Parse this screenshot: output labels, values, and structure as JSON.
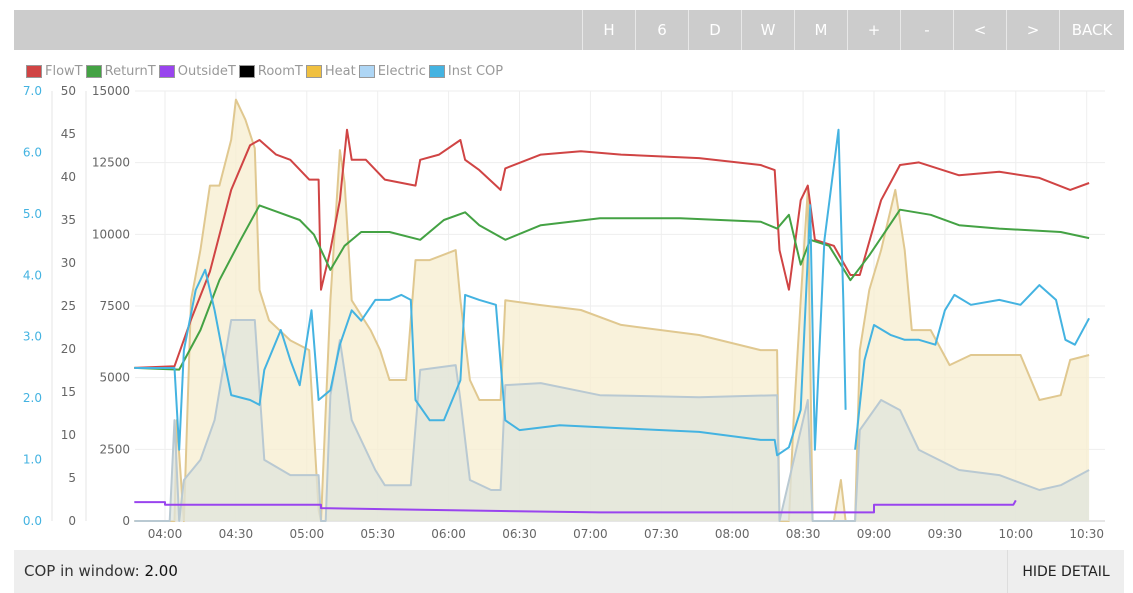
{
  "toolbar": {
    "buttons": [
      "H",
      "6",
      "D",
      "W",
      "M",
      "+",
      "-",
      "<",
      ">"
    ],
    "back": "BACK"
  },
  "legend": [
    {
      "label": "FlowT",
      "color": "#d04444"
    },
    {
      "label": "ReturnT",
      "color": "#44a244"
    },
    {
      "label": "OutsideT",
      "color": "#9944ee"
    },
    {
      "label": "RoomT",
      "color": "#000000"
    },
    {
      "label": "Heat",
      "color": "#f0c040"
    },
    {
      "label": "Electric",
      "color": "#aed6f5"
    },
    {
      "label": "Inst COP",
      "color": "#44b3e1"
    }
  ],
  "footer": {
    "cop_label": "COP in window:",
    "cop_value": "2.00",
    "hide_detail": "HIDE DETAIL"
  },
  "chart_data": {
    "type": "line",
    "x_unit": "minutes since midnight",
    "x_ticks": [
      "04:00",
      "04:30",
      "05:00",
      "05:30",
      "06:00",
      "06:30",
      "07:00",
      "07:30",
      "08:00",
      "08:30",
      "09:00",
      "09:30",
      "10:00",
      "10:30"
    ],
    "axes": {
      "cop": {
        "range": [
          0,
          7
        ],
        "ticks": [
          "0.0",
          "1.0",
          "2.0",
          "3.0",
          "4.0",
          "5.0",
          "6.0",
          "7.0"
        ],
        "color": "#44b3e1"
      },
      "temp": {
        "range": [
          0,
          50
        ],
        "ticks": [
          "0",
          "5",
          "10",
          "15",
          "20",
          "25",
          "30",
          "35",
          "40",
          "45",
          "50"
        ]
      },
      "power": {
        "range": [
          0,
          15000
        ],
        "ticks": [
          "0",
          "2500",
          "5000",
          "7500",
          "10000",
          "12500",
          "15000"
        ]
      }
    },
    "series": [
      {
        "name": "Heat",
        "axis": "power",
        "fill": "#f7edcf",
        "line": "#e0c890",
        "points": [
          [
            227,
            0
          ],
          [
            244,
            0
          ],
          [
            245,
            3520
          ],
          [
            248,
            0
          ],
          [
            251,
            7700
          ],
          [
            255,
            9450
          ],
          [
            259,
            11700
          ],
          [
            263,
            11700
          ],
          [
            268,
            13300
          ],
          [
            270,
            14700
          ],
          [
            274,
            14000
          ],
          [
            278,
            13000
          ],
          [
            280,
            8060
          ],
          [
            284,
            7000
          ],
          [
            293,
            6300
          ],
          [
            301,
            5960
          ],
          [
            305,
            380
          ],
          [
            306,
            0
          ],
          [
            310,
            7700
          ],
          [
            314,
            12940
          ],
          [
            316,
            11800
          ],
          [
            319,
            7700
          ],
          [
            327,
            6660
          ],
          [
            331,
            5960
          ],
          [
            335,
            4920
          ],
          [
            342,
            4920
          ],
          [
            346,
            9100
          ],
          [
            352,
            9100
          ],
          [
            363,
            9450
          ],
          [
            365,
            7700
          ],
          [
            369,
            4920
          ],
          [
            373,
            4220
          ],
          [
            382,
            4220
          ],
          [
            384,
            7700
          ],
          [
            399,
            7530
          ],
          [
            416,
            7360
          ],
          [
            433,
            6840
          ],
          [
            466,
            6490
          ],
          [
            492,
            5960
          ],
          [
            499,
            5960
          ],
          [
            500,
            0
          ],
          [
            504,
            0
          ],
          [
            506,
            3520
          ],
          [
            509,
            7700
          ],
          [
            512,
            11550
          ],
          [
            514,
            0
          ],
          [
            523,
            0
          ],
          [
            526,
            1430
          ],
          [
            528,
            0
          ],
          [
            532,
            0
          ],
          [
            534,
            5960
          ],
          [
            538,
            8060
          ],
          [
            543,
            9450
          ],
          [
            549,
            11550
          ],
          [
            553,
            9450
          ],
          [
            556,
            6660
          ],
          [
            564,
            6660
          ],
          [
            572,
            5440
          ],
          [
            581,
            5790
          ],
          [
            593,
            5790
          ],
          [
            602,
            5790
          ],
          [
            610,
            4220
          ],
          [
            619,
            4390
          ],
          [
            623,
            5620
          ],
          [
            631,
            5790
          ]
        ]
      },
      {
        "name": "Electric",
        "axis": "power",
        "fill": "#dfe4dc",
        "line": "#b9c9d2",
        "points": [
          [
            227,
            0
          ],
          [
            242,
            0
          ],
          [
            244,
            3520
          ],
          [
            246,
            0
          ],
          [
            248,
            1430
          ],
          [
            255,
            2130
          ],
          [
            261,
            3520
          ],
          [
            268,
            7010
          ],
          [
            278,
            7010
          ],
          [
            282,
            2130
          ],
          [
            293,
            1600
          ],
          [
            305,
            1600
          ],
          [
            306,
            0
          ],
          [
            308,
            0
          ],
          [
            310,
            4390
          ],
          [
            314,
            6310
          ],
          [
            319,
            3520
          ],
          [
            329,
            1780
          ],
          [
            333,
            1250
          ],
          [
            344,
            1250
          ],
          [
            348,
            5270
          ],
          [
            363,
            5440
          ],
          [
            365,
            4220
          ],
          [
            369,
            1430
          ],
          [
            378,
            1080
          ],
          [
            382,
            1080
          ],
          [
            384,
            4740
          ],
          [
            399,
            4810
          ],
          [
            424,
            4390
          ],
          [
            466,
            4320
          ],
          [
            499,
            4390
          ],
          [
            500,
            0
          ],
          [
            512,
            4220
          ],
          [
            514,
            0
          ],
          [
            532,
            0
          ],
          [
            534,
            3170
          ],
          [
            543,
            4220
          ],
          [
            551,
            3870
          ],
          [
            559,
            2480
          ],
          [
            576,
            1780
          ],
          [
            593,
            1600
          ],
          [
            610,
            1080
          ],
          [
            619,
            1250
          ],
          [
            631,
            1780
          ]
        ]
      },
      {
        "name": "FlowT",
        "axis": "temp",
        "line": "#d04444",
        "points": [
          [
            227,
            17.8
          ],
          [
            244,
            18
          ],
          [
            251,
            23.4
          ],
          [
            259,
            29
          ],
          [
            268,
            38.5
          ],
          [
            276,
            43.7
          ],
          [
            280,
            44.3
          ],
          [
            287,
            42.6
          ],
          [
            293,
            42
          ],
          [
            301,
            39.7
          ],
          [
            305,
            39.7
          ],
          [
            306,
            26.9
          ],
          [
            310,
            31.5
          ],
          [
            314,
            37.3
          ],
          [
            317,
            45.5
          ],
          [
            319,
            42
          ],
          [
            325,
            42
          ],
          [
            333,
            39.7
          ],
          [
            346,
            39
          ],
          [
            348,
            42
          ],
          [
            356,
            42.6
          ],
          [
            365,
            44.3
          ],
          [
            367,
            42
          ],
          [
            373,
            40.8
          ],
          [
            382,
            38.5
          ],
          [
            384,
            41
          ],
          [
            399,
            42.6
          ],
          [
            416,
            43
          ],
          [
            433,
            42.6
          ],
          [
            466,
            42.2
          ],
          [
            492,
            41.4
          ],
          [
            498,
            40.8
          ],
          [
            500,
            31.5
          ],
          [
            504,
            26.9
          ],
          [
            509,
            37.3
          ],
          [
            512,
            39
          ],
          [
            515,
            32.7
          ],
          [
            523,
            32
          ],
          [
            530,
            28.6
          ],
          [
            534,
            28.6
          ],
          [
            543,
            37.3
          ],
          [
            551,
            41.4
          ],
          [
            559,
            41.7
          ],
          [
            576,
            40.2
          ],
          [
            593,
            40.6
          ],
          [
            610,
            39.9
          ],
          [
            623,
            38.5
          ],
          [
            631,
            39.3
          ]
        ]
      },
      {
        "name": "ReturnT",
        "axis": "temp",
        "line": "#44a244",
        "points": [
          [
            227,
            17.8
          ],
          [
            246,
            17.6
          ],
          [
            255,
            22.2
          ],
          [
            263,
            28
          ],
          [
            272,
            32.7
          ],
          [
            280,
            36.7
          ],
          [
            287,
            36
          ],
          [
            297,
            35
          ],
          [
            303,
            33.3
          ],
          [
            310,
            29.2
          ],
          [
            316,
            32
          ],
          [
            323,
            33.6
          ],
          [
            335,
            33.6
          ],
          [
            348,
            32.7
          ],
          [
            358,
            35
          ],
          [
            367,
            35.9
          ],
          [
            373,
            34.4
          ],
          [
            384,
            32.7
          ],
          [
            399,
            34.4
          ],
          [
            424,
            35.2
          ],
          [
            458,
            35.2
          ],
          [
            492,
            34.8
          ],
          [
            499,
            34
          ],
          [
            504,
            35.6
          ],
          [
            509,
            29.8
          ],
          [
            513,
            32.7
          ],
          [
            521,
            32
          ],
          [
            530,
            28
          ],
          [
            538,
            30.9
          ],
          [
            551,
            36.2
          ],
          [
            564,
            35.6
          ],
          [
            576,
            34.4
          ],
          [
            593,
            34
          ],
          [
            619,
            33.6
          ],
          [
            631,
            32.9
          ]
        ]
      },
      {
        "name": "OutsideT",
        "axis": "temp",
        "line": "#9944ee",
        "points": [
          [
            227,
            2.2
          ],
          [
            240,
            2.2
          ],
          [
            240,
            1.9
          ],
          [
            306,
            1.9
          ],
          [
            306,
            1.5
          ],
          [
            348,
            1.3
          ],
          [
            424,
            1.0
          ],
          [
            540,
            1.0
          ],
          [
            540,
            1.9
          ],
          [
            599,
            1.9
          ],
          [
            600,
            2.4
          ]
        ]
      },
      {
        "name": "Inst COP",
        "axis": "cop",
        "line": "#44b3e1",
        "points": [
          [
            227,
            2.49
          ],
          [
            244,
            2.49
          ],
          [
            246,
            1.16
          ],
          [
            248,
            2.78
          ],
          [
            253,
            3.76
          ],
          [
            257,
            4.09
          ],
          [
            261,
            3.43
          ],
          [
            265,
            2.62
          ],
          [
            268,
            2.05
          ],
          [
            276,
            1.97
          ],
          [
            280,
            1.89
          ],
          [
            282,
            2.46
          ],
          [
            289,
            3.11
          ],
          [
            293,
            2.62
          ],
          [
            297,
            2.21
          ],
          [
            302,
            3.43
          ],
          [
            305,
            1.97
          ],
          [
            310,
            2.13
          ],
          [
            314,
            2.87
          ],
          [
            319,
            3.43
          ],
          [
            323,
            3.26
          ],
          [
            329,
            3.6
          ],
          [
            335,
            3.6
          ],
          [
            340,
            3.68
          ],
          [
            344,
            3.6
          ],
          [
            346,
            1.97
          ],
          [
            352,
            1.64
          ],
          [
            358,
            1.64
          ],
          [
            365,
            2.29
          ],
          [
            367,
            3.68
          ],
          [
            373,
            3.6
          ],
          [
            380,
            3.52
          ],
          [
            384,
            1.64
          ],
          [
            390,
            1.48
          ],
          [
            407,
            1.56
          ],
          [
            433,
            1.51
          ],
          [
            466,
            1.45
          ],
          [
            492,
            1.32
          ],
          [
            498,
            1.32
          ],
          [
            499,
            1.07
          ],
          [
            504,
            1.2
          ],
          [
            509,
            1.81
          ],
          [
            513,
            5.14
          ],
          [
            515,
            1.16
          ],
          [
            519,
            4.57
          ],
          [
            525,
            6.37
          ],
          [
            527,
            3.6
          ],
          [
            528,
            1.81
          ],
          [
            530,
            null
          ],
          [
            532,
            1.16
          ],
          [
            536,
            2.62
          ],
          [
            540,
            3.19
          ],
          [
            547,
            3.03
          ],
          [
            553,
            2.95
          ],
          [
            559,
            2.95
          ],
          [
            566,
            2.87
          ],
          [
            570,
            3.43
          ],
          [
            574,
            3.68
          ],
          [
            581,
            3.52
          ],
          [
            593,
            3.6
          ],
          [
            602,
            3.52
          ],
          [
            610,
            3.84
          ],
          [
            617,
            3.6
          ],
          [
            621,
            2.95
          ],
          [
            625,
            2.87
          ],
          [
            631,
            3.3
          ]
        ]
      }
    ]
  }
}
